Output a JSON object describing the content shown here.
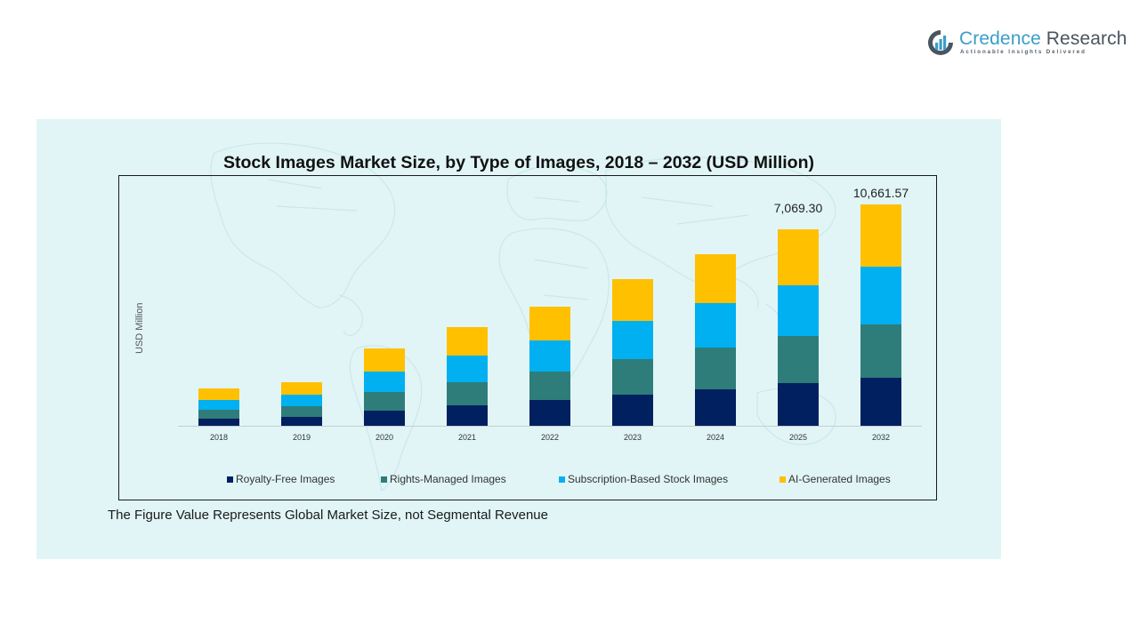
{
  "logo": {
    "brand_part1": "Credence",
    "brand_part2": " Research",
    "tagline": "Actionable Insights Delivered"
  },
  "colors": {
    "royalty_free": "#002060",
    "rights_managed": "#2E7D7A",
    "subscription": "#00B0F0",
    "ai_generated": "#FFC000",
    "panel_bg": "#E1F5F6"
  },
  "chart_data": {
    "type": "bar",
    "stacked": true,
    "title": "Stock Images Market Size, by Type of Images, 2018 – 2032 (USD Million)",
    "xlabel": "",
    "ylabel": "USD Million",
    "grid": false,
    "legend_position": "bottom",
    "categories": [
      "2018",
      "2019",
      "2020",
      "2021",
      "2022",
      "2023",
      "2024",
      "2025",
      "2032"
    ],
    "series": [
      {
        "name": "Royalty-Free Images",
        "color": "#002060",
        "values": [
          256,
          320,
          544,
          736,
          928,
          1120,
          1312,
          1535,
          2312
        ]
      },
      {
        "name": "Rights-Managed Images",
        "color": "#2E7D7A",
        "values": [
          320,
          384,
          672,
          832,
          1024,
          1280,
          1504,
          1695,
          2569
        ]
      },
      {
        "name": "Subscription-Based Stock Images",
        "color": "#00B0F0",
        "values": [
          352,
          416,
          736,
          960,
          1120,
          1376,
          1600,
          1823,
          2783
        ]
      },
      {
        "name": "AI-Generated Images",
        "color": "#FFC000",
        "values": [
          416,
          448,
          832,
          1024,
          1216,
          1504,
          1760,
          2016,
          2997
        ]
      }
    ],
    "bar_pixel_segments": [
      [
        8,
        10,
        11,
        13
      ],
      [
        10,
        12,
        13,
        14
      ],
      [
        17,
        21,
        23,
        26
      ],
      [
        23,
        26,
        30,
        32
      ],
      [
        29,
        32,
        35,
        38
      ],
      [
        35,
        40,
        43,
        47
      ],
      [
        41,
        47,
        50,
        55
      ],
      [
        48,
        53,
        57,
        63
      ],
      [
        54,
        60,
        65,
        70
      ]
    ],
    "annotations": [
      {
        "category": "2025",
        "text": "7,069.30"
      },
      {
        "category": "2032",
        "text": "10,661.57"
      }
    ],
    "totals_labeled": {
      "2025": 7069.3,
      "2032": 10661.57
    }
  },
  "chart": {
    "ylabel": "USD Million",
    "label_2025": "7,069.30",
    "label_2032": "10,661.57",
    "legend": [
      "Royalty-Free Images",
      "Rights-Managed Images",
      "Subscription-Based Stock Images",
      "AI-Generated Images"
    ]
  },
  "footnote": "The Figure Value Represents Global Market Size, not Segmental Revenue"
}
